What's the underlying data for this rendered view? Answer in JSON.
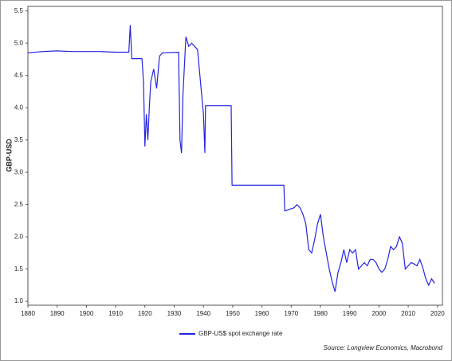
{
  "chart_data": {
    "type": "line",
    "y_label": "GBP-USD",
    "source": "Source: Longview Economics, Macrobond",
    "xlim": [
      1880,
      2021.7
    ],
    "ylim": [
      0.94,
      5.57
    ],
    "xticks": [
      1880,
      1890,
      1900,
      1910,
      1920,
      1930,
      1940,
      1950,
      1960,
      1970,
      1980,
      1990,
      2000,
      2010,
      2020
    ],
    "yticks": [
      {
        "value": 1,
        "label": "1.0"
      },
      1.5,
      {
        "value": 2,
        "label": "2.0"
      },
      2.5,
      {
        "value": 3,
        "label": "3.0"
      },
      3.5,
      {
        "value": 4,
        "label": "4.0"
      },
      4.5,
      {
        "value": 5,
        "label": "5.0"
      },
      5.5
    ],
    "grid": false,
    "x": [
      1880,
      1885,
      1890,
      1895,
      1900,
      1905,
      1910,
      1914.5,
      1915,
      1915.5,
      1919,
      1919.5,
      1920,
      1920.5,
      1921,
      1921.5,
      1922,
      1923,
      1924,
      1925,
      1926,
      1931.5,
      1932,
      1932.5,
      1933,
      1934,
      1935,
      1936,
      1937,
      1938,
      1939,
      1940,
      1940.5,
      1940.7,
      1949.5,
      1949.8,
      1967.5,
      1967.8,
      1971,
      1972,
      1973,
      1974,
      1975,
      1976,
      1977,
      1978,
      1979,
      1980,
      1981,
      1982,
      1983,
      1984,
      1985,
      1986,
      1987,
      1988,
      1989,
      1990,
      1991,
      1992,
      1993,
      1994,
      1995,
      1996,
      1997,
      1998,
      1999,
      2000,
      2001,
      2002,
      2003,
      2004,
      2005,
      2006,
      2007,
      2008,
      2009,
      2010,
      2011,
      2012,
      2013,
      2014,
      2015,
      2016,
      2017,
      2018,
      2019
    ],
    "series": [
      {
        "name": "GBP-US$ spot exchange rate",
        "color": "#2424e0",
        "values": [
          4.85,
          4.87,
          4.88,
          4.87,
          4.87,
          4.87,
          4.86,
          4.86,
          5.28,
          4.76,
          4.76,
          4.4,
          3.4,
          3.9,
          3.5,
          4.0,
          4.4,
          4.6,
          4.3,
          4.8,
          4.85,
          4.86,
          3.5,
          3.3,
          4.2,
          5.1,
          4.95,
          5.0,
          4.95,
          4.9,
          4.4,
          3.9,
          3.3,
          4.03,
          4.03,
          2.8,
          2.8,
          2.4,
          2.45,
          2.5,
          2.45,
          2.35,
          2.2,
          1.8,
          1.75,
          1.95,
          2.2,
          2.35,
          2.0,
          1.75,
          1.5,
          1.3,
          1.15,
          1.45,
          1.6,
          1.8,
          1.6,
          1.8,
          1.75,
          1.8,
          1.5,
          1.55,
          1.6,
          1.55,
          1.65,
          1.65,
          1.6,
          1.5,
          1.45,
          1.5,
          1.65,
          1.85,
          1.8,
          1.85,
          2.0,
          1.9,
          1.5,
          1.55,
          1.6,
          1.58,
          1.55,
          1.65,
          1.52,
          1.35,
          1.25,
          1.35,
          1.28
        ]
      }
    ]
  }
}
